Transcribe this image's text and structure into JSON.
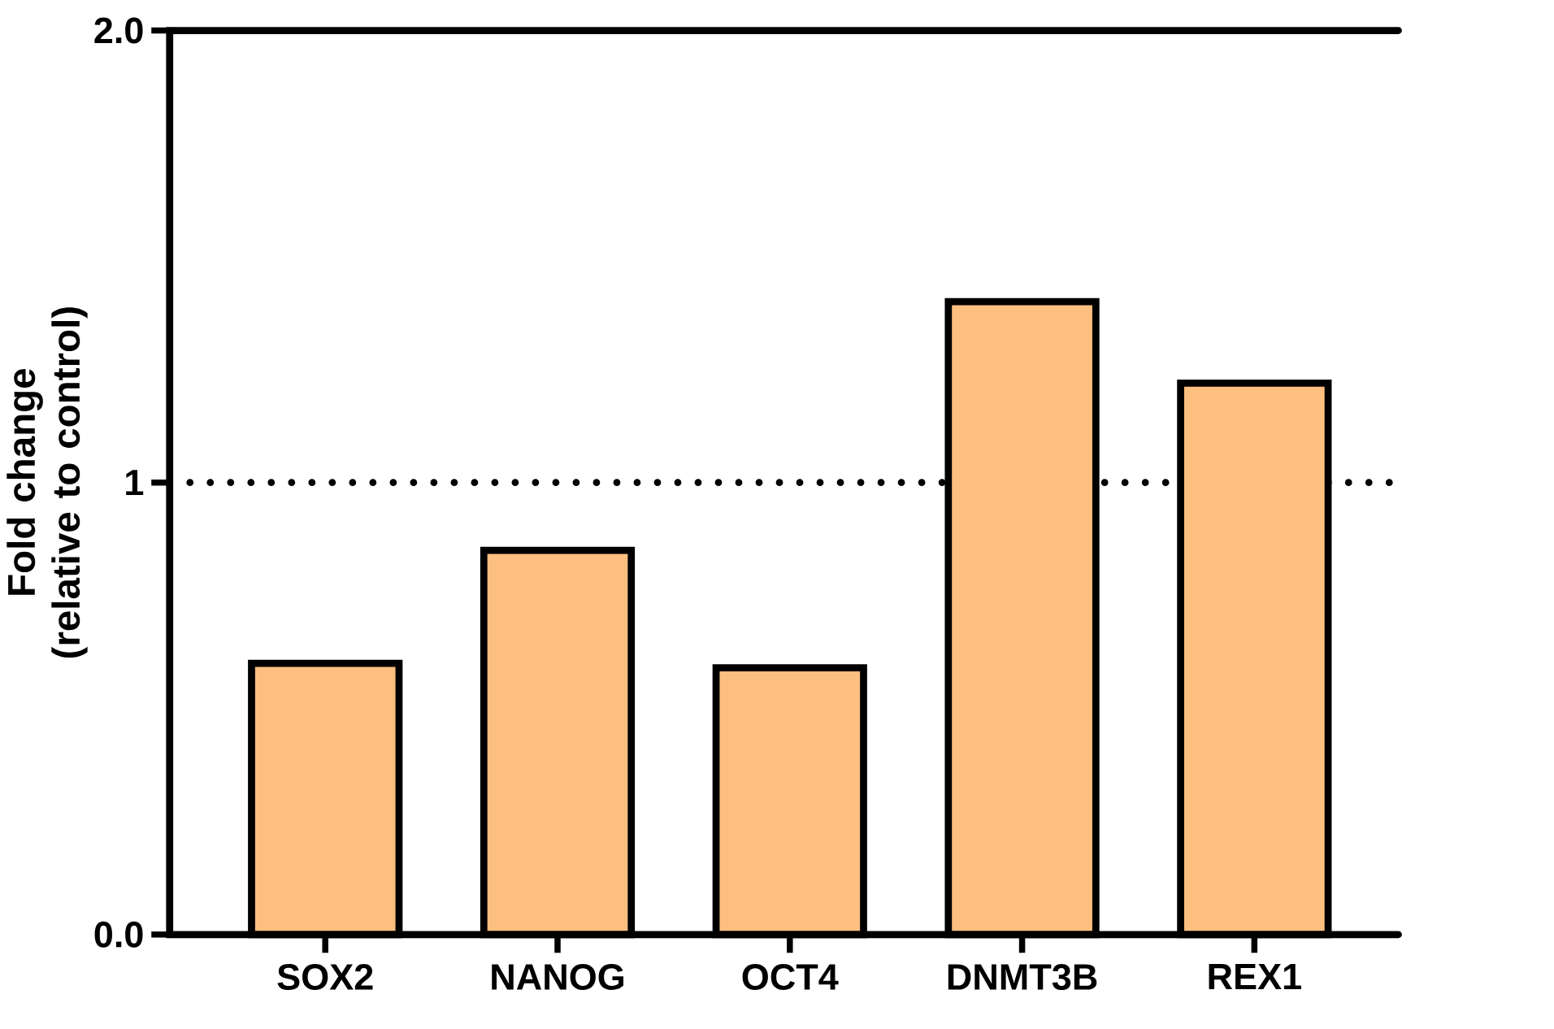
{
  "chart_data": {
    "type": "bar",
    "ylabel": "Fold change (relative to control)",
    "categories": [
      "SOX2",
      "NANOG",
      "OCT4",
      "DNMT3B",
      "REX1"
    ],
    "values": [
      0.6,
      0.85,
      0.59,
      1.4,
      1.22
    ],
    "color": "#fdbf80",
    "ylim": [
      0,
      2
    ],
    "yticks": [
      {
        "value": 0,
        "label": "0.0"
      },
      1,
      {
        "value": 2,
        "label": "2.0"
      }
    ],
    "ref_lines": [
      {
        "axis": "y",
        "value": 1,
        "color": "#000000",
        "line_style": "dotted"
      }
    ]
  }
}
